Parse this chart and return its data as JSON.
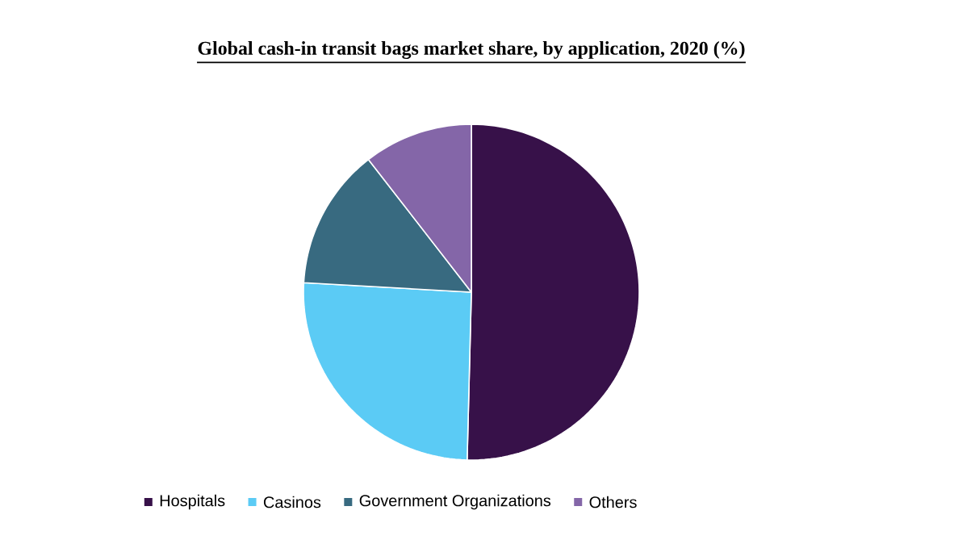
{
  "chart_data": {
    "type": "pie",
    "title": "Global cash-in transit bags market share, by application, 2020 (%)",
    "categories": [
      "Hospitals",
      "Casinos",
      "Government Organizations",
      "Others"
    ],
    "values": [
      50.4,
      25.5,
      13.6,
      10.5
    ],
    "colors": [
      "#371149",
      "#5bcbf5",
      "#386a80",
      "#8466a8"
    ],
    "legend": "bottom"
  }
}
